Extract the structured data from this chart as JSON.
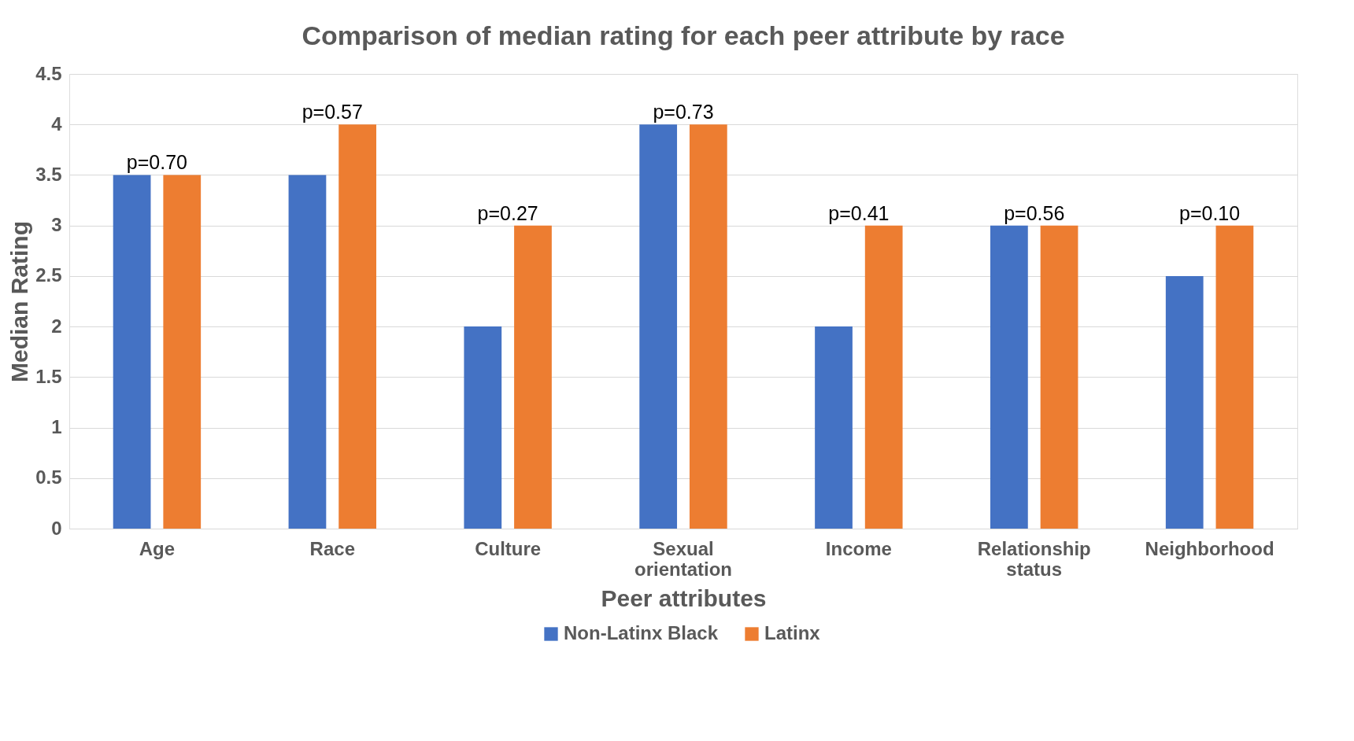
{
  "chart_data": {
    "type": "bar",
    "title": "Comparison of median rating for each peer attribute by race",
    "xlabel": "Peer attributes",
    "ylabel": "Median Rating",
    "categories": [
      "Age",
      "Race",
      "Culture",
      "Sexual orientation",
      "Income",
      "Relationship status",
      "Neighborhood"
    ],
    "series": [
      {
        "name": "Non-Latinx Black",
        "color": "#4472c4",
        "values": [
          3.5,
          3.5,
          2,
          4,
          2,
          3,
          2.5
        ]
      },
      {
        "name": "Latinx",
        "color": "#ed7d31",
        "values": [
          3.5,
          4,
          3,
          4,
          3,
          3,
          3
        ]
      }
    ],
    "annotations": [
      "p=0.70",
      "p=0.57",
      "p=0.27",
      "p=0.73",
      "p=0.41",
      "p=0.56",
      "p=0.10"
    ],
    "ylim": [
      0,
      4.5
    ],
    "yticks": [
      0,
      0.5,
      1,
      1.5,
      2,
      2.5,
      3,
      3.5,
      4,
      4.5
    ],
    "grid": "y",
    "legend": "bottom"
  }
}
